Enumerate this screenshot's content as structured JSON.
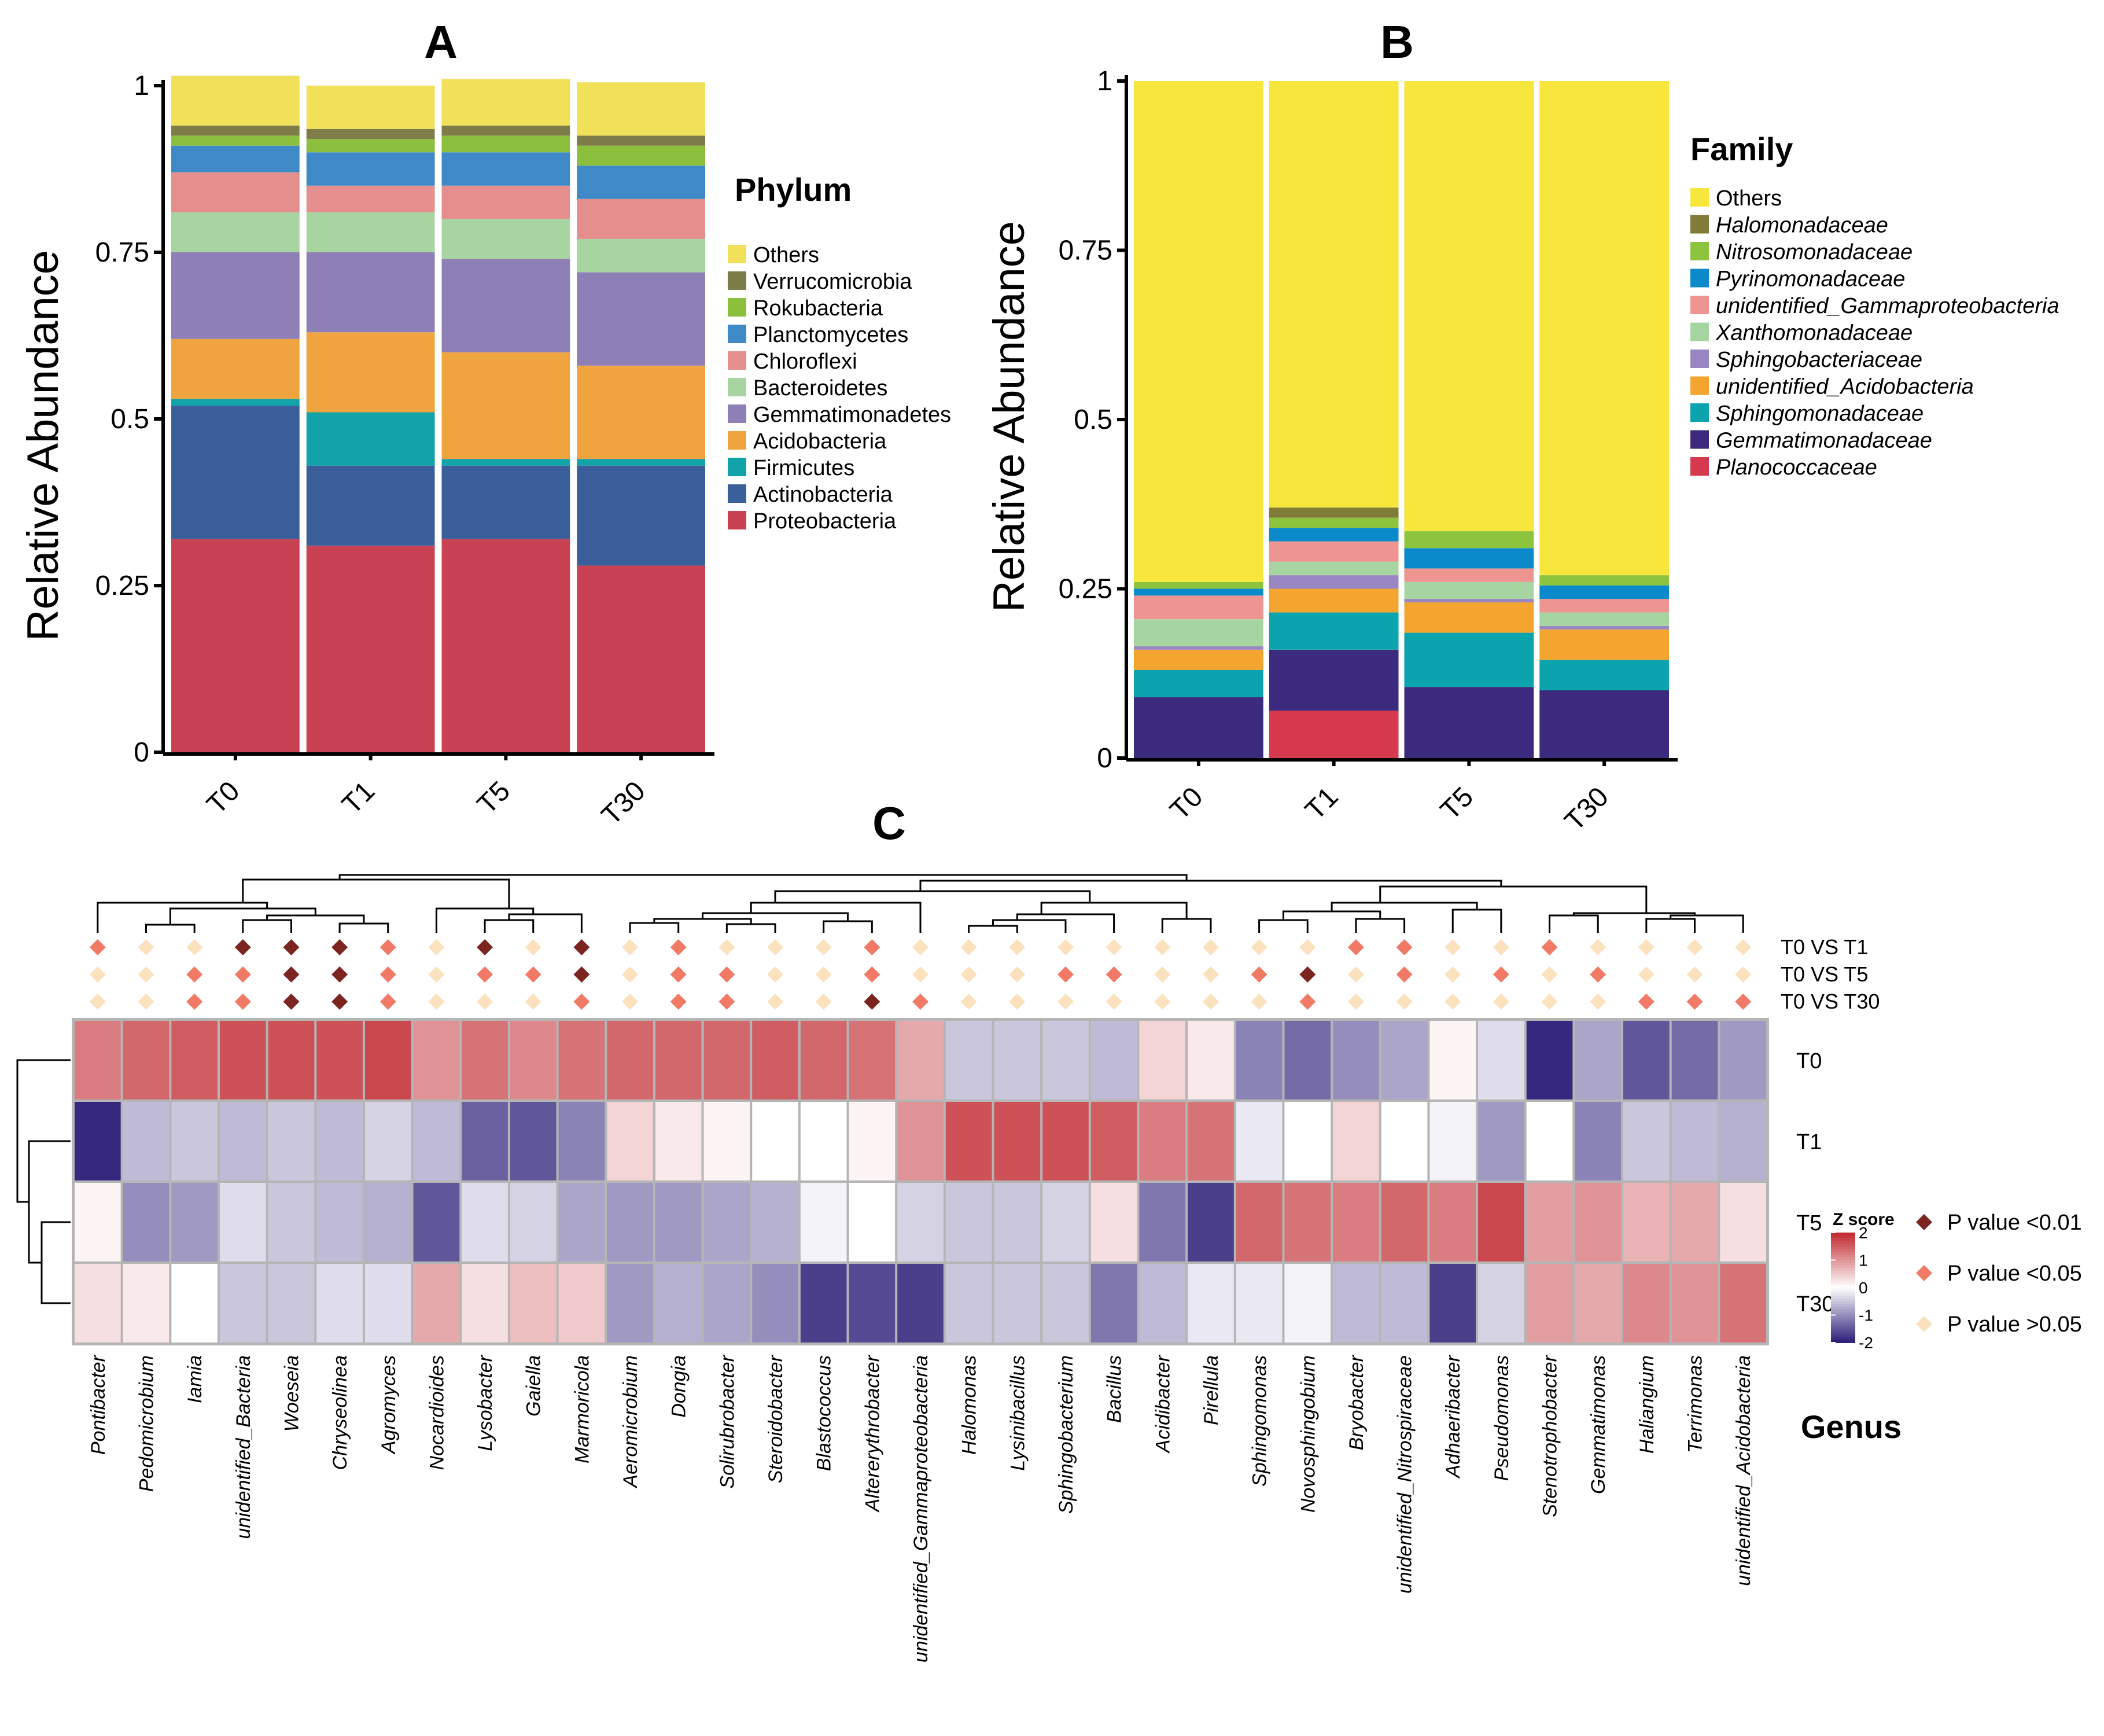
{
  "chart_data": [
    {
      "type": "bar",
      "stacked": true,
      "panel_label": "A",
      "ylabel": "Relative Abundance",
      "ylim": [
        0,
        1
      ],
      "yticks": [
        "0",
        "0.25",
        "0.5",
        "0.75",
        "1"
      ],
      "yticks_values": [
        0,
        0.25,
        0.5,
        0.75,
        1
      ],
      "categories": [
        "T0",
        "T1",
        "T5",
        "T30"
      ],
      "legend_title": "Phylum",
      "legend_italic": false,
      "series": [
        {
          "name": "Proteobacteria",
          "color": "#C84254",
          "values": [
            0.32,
            0.31,
            0.32,
            0.28
          ]
        },
        {
          "name": "Actinobacteria",
          "color": "#3A5F9B",
          "values": [
            0.2,
            0.12,
            0.11,
            0.15
          ]
        },
        {
          "name": "Firmicutes",
          "color": "#12A3A8",
          "values": [
            0.01,
            0.08,
            0.01,
            0.01
          ]
        },
        {
          "name": "Acidobacteria",
          "color": "#EFA43F",
          "values": [
            0.09,
            0.12,
            0.16,
            0.14
          ]
        },
        {
          "name": "Gemmatimonadetes",
          "color": "#8E80B6",
          "values": [
            0.13,
            0.12,
            0.14,
            0.14
          ]
        },
        {
          "name": "Bacteroidetes",
          "color": "#A7D4A0",
          "values": [
            0.06,
            0.06,
            0.06,
            0.05
          ]
        },
        {
          "name": "Chloroflexi",
          "color": "#E48F8E",
          "values": [
            0.06,
            0.04,
            0.05,
            0.06
          ]
        },
        {
          "name": "Planctomycetes",
          "color": "#3F8AC6",
          "values": [
            0.04,
            0.05,
            0.05,
            0.05
          ]
        },
        {
          "name": "Rokubacteria",
          "color": "#8DBF3E",
          "values": [
            0.015,
            0.02,
            0.025,
            0.03
          ]
        },
        {
          "name": "Verrucomicrobia",
          "color": "#7E7C48",
          "values": [
            0.015,
            0.015,
            0.015,
            0.015
          ]
        },
        {
          "name": "Others",
          "color": "#F0E05A",
          "values": [
            0.075,
            0.065,
            0.07,
            0.08
          ]
        }
      ]
    },
    {
      "type": "bar",
      "stacked": true,
      "panel_label": "B",
      "ylabel": "Relative Abundance",
      "ylim": [
        0,
        1
      ],
      "yticks": [
        "0",
        "0.25",
        "0.5",
        "0.75",
        "1"
      ],
      "yticks_values": [
        0,
        0.25,
        0.5,
        0.75,
        1
      ],
      "categories": [
        "T0",
        "T1",
        "T5",
        "T30"
      ],
      "legend_title": "Family",
      "legend_italic": true,
      "series": [
        {
          "name": "Planococcaceae",
          "color": "#D6394E",
          "values": [
            0.0,
            0.07,
            0.0,
            0.0
          ]
        },
        {
          "name": "Gemmatimonadaceae",
          "color": "#3C2A7E",
          "values": [
            0.09,
            0.09,
            0.105,
            0.1
          ]
        },
        {
          "name": "Sphingomonadaceae",
          "color": "#0AA3AE",
          "values": [
            0.04,
            0.055,
            0.08,
            0.045
          ]
        },
        {
          "name": "unidentified_Acidobacteria",
          "color": "#F3A52F",
          "values": [
            0.03,
            0.035,
            0.045,
            0.045
          ]
        },
        {
          "name": "Sphingobacteriaceae",
          "color": "#9A86C2",
          "values": [
            0.005,
            0.02,
            0.005,
            0.005
          ]
        },
        {
          "name": "Xanthomonadaceae",
          "color": "#A6D5A2",
          "values": [
            0.04,
            0.02,
            0.025,
            0.02
          ]
        },
        {
          "name": "unidentified_Gammaproteobacteria",
          "color": "#EE9591",
          "values": [
            0.035,
            0.03,
            0.02,
            0.02
          ]
        },
        {
          "name": "Pyrinomonadaceae",
          "color": "#0B8ACB",
          "values": [
            0.01,
            0.02,
            0.03,
            0.02
          ]
        },
        {
          "name": "Nitrosomonadaceae",
          "color": "#8CC43E",
          "values": [
            0.01,
            0.015,
            0.025,
            0.015
          ]
        },
        {
          "name": "Halomonadaceae",
          "color": "#807B36",
          "values": [
            0.0,
            0.015,
            0.0,
            0.0
          ]
        },
        {
          "name": "Others",
          "color": "#F7E63B",
          "values": [
            0.74,
            0.63,
            0.665,
            0.73
          ]
        }
      ]
    },
    {
      "type": "heatmap",
      "panel_label": "C",
      "rows": [
        "T0",
        "T1",
        "T5",
        "T30"
      ],
      "xlabel": "Genus",
      "columns": [
        "Pontibacter",
        "Pedomicrobium",
        "Iamia",
        "unidentified_Bacteria",
        "Woeseia",
        "Chryseolinea",
        "Agromyces",
        "Nocardioides",
        "Lysobacter",
        "Gaiella",
        "Marmoricola",
        "Aeromicrobium",
        "Dongia",
        "Solirubrobacter",
        "Steroidobacter",
        "Blastococcus",
        "Altererythrobacter",
        "unidentified_Gammaproteobacteria",
        "Halomonas",
        "Lysinibacillus",
        "Sphingobacterium",
        "Bacillus",
        "Acidibacter",
        "Pirellula",
        "Sphingomonas",
        "Novosphingobium",
        "Bryobacter",
        "unidentified_Nitrospiraceae",
        "Adhaeribacter",
        "Pseudomonas",
        "Stenotrophobacter",
        "Gemmatimonas",
        "Haliangium",
        "Terrimonas",
        "unidentified_Acidobacteria"
      ],
      "zscores": [
        [
          1.2,
          1.4,
          1.5,
          1.6,
          1.6,
          1.6,
          1.7,
          1.0,
          1.3,
          1.1,
          1.3,
          1.4,
          1.4,
          1.4,
          1.5,
          1.4,
          1.3,
          0.8,
          -0.5,
          -0.5,
          -0.5,
          -0.6,
          0.4,
          0.2,
          -1.1,
          -1.3,
          -1.0,
          -0.8,
          0.1,
          -0.3,
          -1.9,
          -0.8,
          -1.5,
          -1.3,
          -0.9
        ],
        [
          -1.9,
          -0.6,
          -0.5,
          -0.6,
          -0.5,
          -0.6,
          -0.4,
          -0.6,
          -1.4,
          -1.5,
          -1.1,
          0.4,
          0.2,
          0.1,
          0.0,
          0.0,
          0.1,
          1.0,
          1.6,
          1.6,
          1.6,
          1.5,
          1.2,
          1.3,
          -0.2,
          0.0,
          0.4,
          0.0,
          -0.1,
          -0.9,
          0.0,
          -1.1,
          -0.5,
          -0.6,
          -0.7
        ],
        [
          0.1,
          -1.0,
          -0.9,
          -0.3,
          -0.5,
          -0.6,
          -0.7,
          -1.5,
          -0.3,
          -0.4,
          -0.8,
          -0.9,
          -0.9,
          -0.8,
          -0.7,
          -0.1,
          0.0,
          -0.4,
          -0.5,
          -0.5,
          -0.4,
          0.3,
          -1.2,
          -1.7,
          1.4,
          1.3,
          1.2,
          1.4,
          1.2,
          1.7,
          0.9,
          1.0,
          0.7,
          0.8,
          0.3
        ],
        [
          0.3,
          0.2,
          0.0,
          -0.5,
          -0.5,
          -0.3,
          -0.3,
          0.8,
          0.3,
          0.6,
          0.5,
          -0.9,
          -0.7,
          -0.8,
          -1.0,
          -1.7,
          -1.6,
          -1.7,
          -0.5,
          -0.5,
          -0.5,
          -1.2,
          -0.6,
          -0.2,
          -0.2,
          -0.1,
          -0.6,
          -0.6,
          -1.7,
          -0.4,
          0.9,
          0.8,
          1.1,
          1.0,
          1.3
        ]
      ],
      "comparisons": [
        "T0 VS T1",
        "T0 VS T5",
        "T0 VS T30"
      ],
      "significance": [
        [
          2,
          1,
          1,
          3,
          3,
          3,
          2,
          1,
          3,
          1,
          3,
          1,
          2,
          1,
          1,
          1,
          2,
          1,
          1,
          1,
          1,
          1,
          1,
          1,
          1,
          1,
          2,
          2,
          1,
          1,
          2,
          1,
          1,
          1,
          1
        ],
        [
          1,
          1,
          2,
          2,
          3,
          3,
          2,
          1,
          2,
          2,
          3,
          1,
          2,
          2,
          1,
          1,
          2,
          1,
          1,
          1,
          2,
          2,
          1,
          1,
          2,
          3,
          1,
          2,
          1,
          2,
          1,
          2,
          1,
          1,
          1
        ],
        [
          1,
          1,
          2,
          2,
          3,
          3,
          2,
          1,
          1,
          1,
          2,
          1,
          2,
          2,
          1,
          1,
          3,
          2,
          1,
          1,
          1,
          1,
          1,
          1,
          1,
          2,
          1,
          1,
          1,
          1,
          1,
          1,
          2,
          2,
          2
        ]
      ],
      "colorbar_title": "Z score",
      "colorbar_ticks": [
        "2",
        "1",
        "0",
        "-1",
        "-2"
      ],
      "colorbar_values": [
        2,
        1,
        0,
        -1,
        -2
      ],
      "zlim": [
        -2,
        2
      ],
      "colors": {
        "high": "#C0272D",
        "mid": "#FFFFFF",
        "low": "#2B1D78"
      },
      "significance_legend": [
        {
          "label": "P value <0.01",
          "color": "#7B2420"
        },
        {
          "label": "P value <0.05",
          "color": "#F07A66"
        },
        {
          "label": "P value >0.05",
          "color": "#FCE1BE"
        }
      ]
    }
  ]
}
